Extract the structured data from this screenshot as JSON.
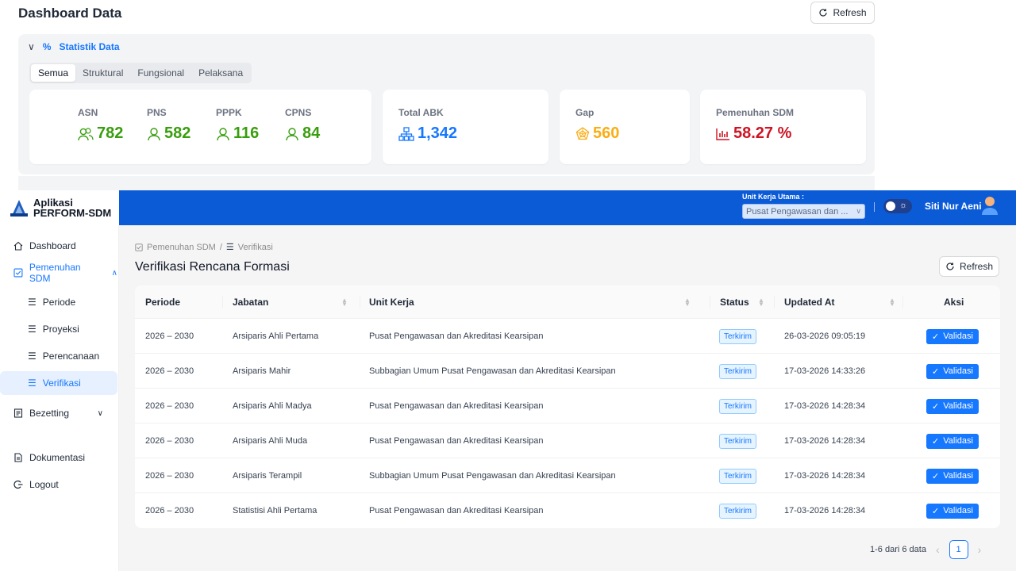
{
  "dashboard": {
    "title": "Dashboard Data",
    "refresh_label": "Refresh",
    "section_title": "Statistik Data",
    "tabs": [
      "Semua",
      "Struktural",
      "Fungsional",
      "Pelaksana"
    ],
    "active_tab": "Semua",
    "counts": [
      {
        "label": "ASN",
        "value": "782"
      },
      {
        "label": "PNS",
        "value": "582"
      },
      {
        "label": "PPPK",
        "value": "116"
      },
      {
        "label": "CPNS",
        "value": "84"
      }
    ],
    "total_abk": {
      "label": "Total ABK",
      "value": "1,342"
    },
    "gap": {
      "label": "Gap",
      "value": "560"
    },
    "pemenuhan": {
      "label": "Pemenuhan SDM",
      "value": "58.27 %"
    }
  },
  "app": {
    "name_line1": "Aplikasi",
    "name_line2": "PERFORM-SDM",
    "unit_label": "Unit Kerja Utama :",
    "unit_value": "Pusat Pengawasan dan ...",
    "user_name": "Siti Nur Aeni"
  },
  "sidebar": {
    "items": [
      {
        "label": "Dashboard",
        "icon": "home-icon"
      },
      {
        "label": "Pemenuhan SDM",
        "icon": "checkbox-icon"
      },
      {
        "label": "Periode",
        "icon": "list-icon"
      },
      {
        "label": "Proyeksi",
        "icon": "list-icon"
      },
      {
        "label": "Perencanaan",
        "icon": "list-icon"
      },
      {
        "label": "Verifikasi",
        "icon": "list-icon"
      },
      {
        "label": "Bezetting",
        "icon": "document-icon"
      },
      {
        "label": "Dokumentasi",
        "icon": "file-icon"
      },
      {
        "label": "Logout",
        "icon": "logout-icon"
      }
    ]
  },
  "page": {
    "breadcrumb": [
      "Pemenuhan SDM",
      "Verifikasi"
    ],
    "title": "Verifikasi Rencana Formasi",
    "refresh_label": "Refresh"
  },
  "table": {
    "columns": [
      "Periode",
      "Jabatan",
      "Unit Kerja",
      "Status",
      "Updated At",
      "Aksi"
    ],
    "action_label": "Validasi",
    "rows": [
      {
        "periode": "2026 – 2030",
        "jabatan": "Arsiparis Ahli Pertama",
        "unit": "Pusat Pengawasan dan Akreditasi Kearsipan",
        "status": "Terkirim",
        "updated": "26-03-2026 09:05:19"
      },
      {
        "periode": "2026 – 2030",
        "jabatan": "Arsiparis Mahir",
        "unit": "Subbagian Umum Pusat Pengawasan dan Akreditasi Kearsipan",
        "status": "Terkirim",
        "updated": "17-03-2026 14:33:26"
      },
      {
        "periode": "2026 – 2030",
        "jabatan": "Arsiparis Ahli Madya",
        "unit": "Pusat Pengawasan dan Akreditasi Kearsipan",
        "status": "Terkirim",
        "updated": "17-03-2026 14:28:34"
      },
      {
        "periode": "2026 – 2030",
        "jabatan": "Arsiparis Ahli Muda",
        "unit": "Pusat Pengawasan dan Akreditasi Kearsipan",
        "status": "Terkirim",
        "updated": "17-03-2026 14:28:34"
      },
      {
        "periode": "2026 – 2030",
        "jabatan": "Arsiparis Terampil",
        "unit": "Subbagian Umum Pusat Pengawasan dan Akreditasi Kearsipan",
        "status": "Terkirim",
        "updated": "17-03-2026 14:28:34"
      },
      {
        "periode": "2026 – 2030",
        "jabatan": "Statistisi Ahli Pertama",
        "unit": "Pusat Pengawasan dan Akreditasi Kearsipan",
        "status": "Terkirim",
        "updated": "17-03-2026 14:28:34"
      }
    ]
  },
  "pagination": {
    "summary": "1-6 dari 6 data",
    "current_page": "1"
  },
  "colors": {
    "primary": "#1677ff",
    "topbar": "#0b5bd7",
    "green": "#389e0d",
    "orange": "#faad14",
    "red": "#cf1322"
  }
}
